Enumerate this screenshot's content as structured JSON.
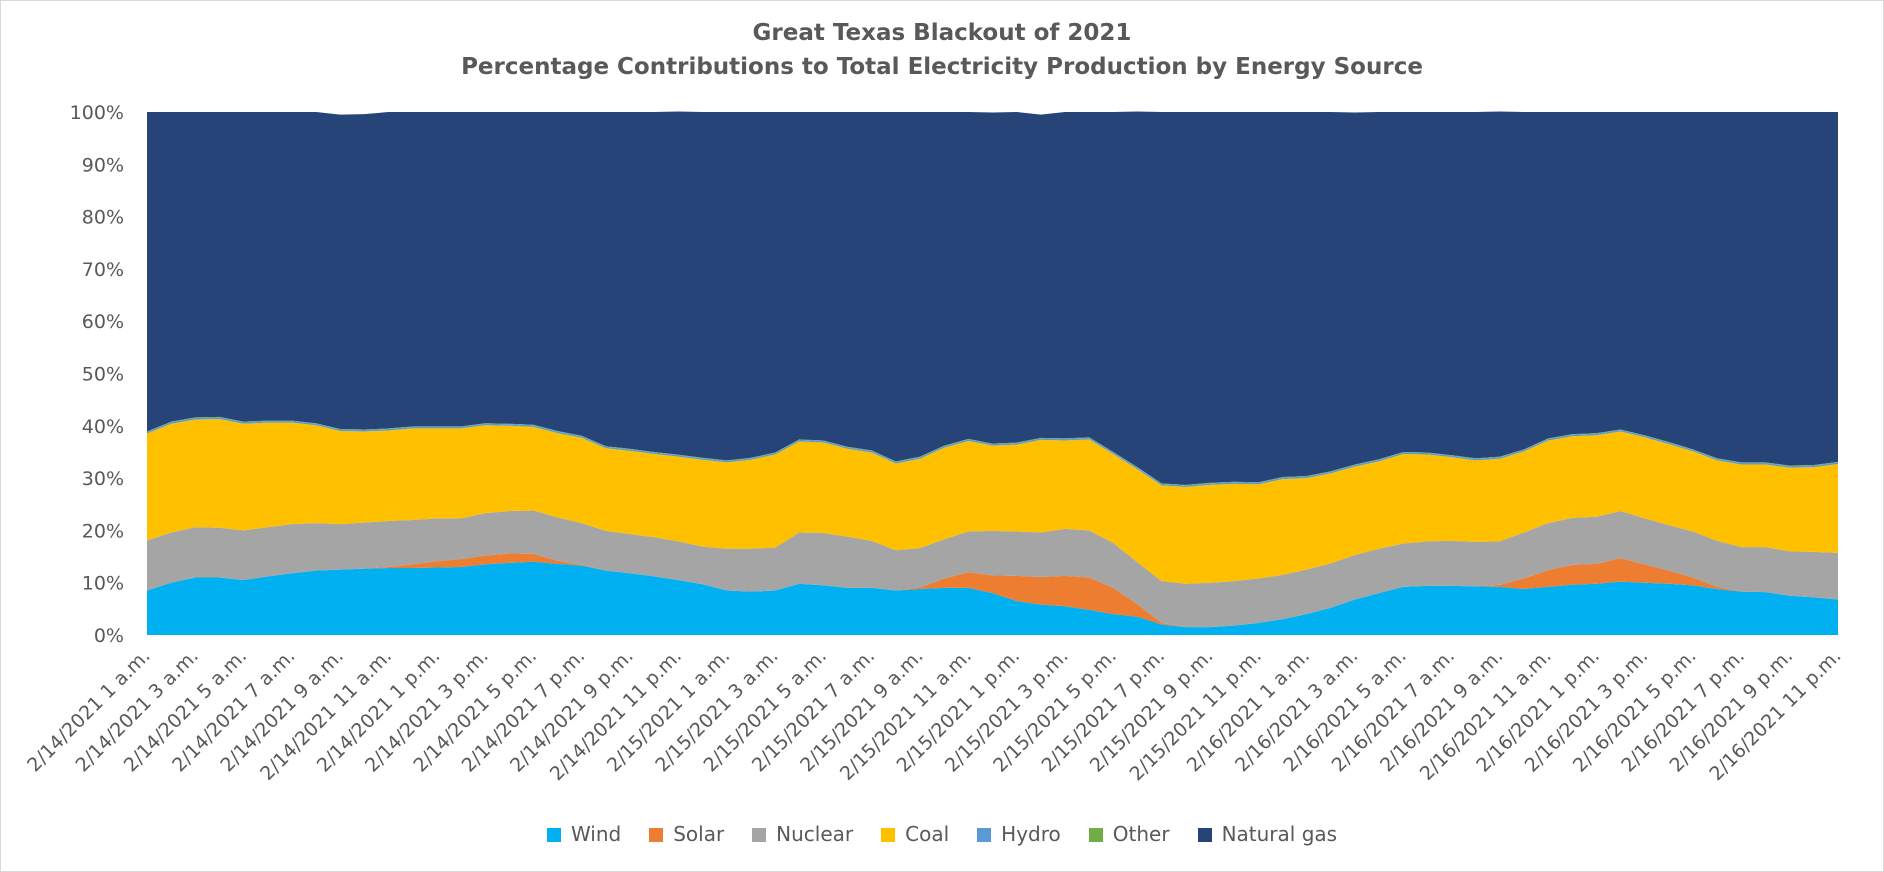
{
  "chart_data": {
    "type": "area",
    "stacked": true,
    "normalized": true,
    "title": "Great Texas Blackout of 2021",
    "subtitle": "Percentage Contributions to Total Electricity Production by Energy Source",
    "ylim": [
      0,
      100
    ],
    "y_ticks": [
      "0%",
      "10%",
      "20%",
      "30%",
      "40%",
      "50%",
      "60%",
      "70%",
      "80%",
      "90%",
      "100%"
    ],
    "x": [
      "2/14/2021 1 a.m.",
      "2/14/2021 2 a.m.",
      "2/14/2021 3 a.m.",
      "2/14/2021 4 a.m.",
      "2/14/2021 5 a.m.",
      "2/14/2021 6 a.m.",
      "2/14/2021 7 a.m.",
      "2/14/2021 8 a.m.",
      "2/14/2021 9 a.m.",
      "2/14/2021 10 a.m.",
      "2/14/2021 11 a.m.",
      "2/14/2021 12 p.m.",
      "2/14/2021 1 p.m.",
      "2/14/2021 2 p.m.",
      "2/14/2021 3 p.m.",
      "2/14/2021 4 p.m.",
      "2/14/2021 5 p.m.",
      "2/14/2021 6 p.m.",
      "2/14/2021 7 p.m.",
      "2/14/2021 8 p.m.",
      "2/14/2021 9 p.m.",
      "2/14/2021 10 p.m.",
      "2/14/2021 11 p.m.",
      "2/15/2021 12 a.m.",
      "2/15/2021 1 a.m.",
      "2/15/2021 2 a.m.",
      "2/15/2021 3 a.m.",
      "2/15/2021 4 a.m.",
      "2/15/2021 5 a.m.",
      "2/15/2021 6 a.m.",
      "2/15/2021 7 a.m.",
      "2/15/2021 8 a.m.",
      "2/15/2021 9 a.m.",
      "2/15/2021 10 a.m.",
      "2/15/2021 11 a.m.",
      "2/15/2021 12 p.m.",
      "2/15/2021 1 p.m.",
      "2/15/2021 2 p.m.",
      "2/15/2021 3 p.m.",
      "2/15/2021 4 p.m.",
      "2/15/2021 5 p.m.",
      "2/15/2021 6 p.m.",
      "2/15/2021 7 p.m.",
      "2/15/2021 8 p.m.",
      "2/15/2021 9 p.m.",
      "2/15/2021 10 p.m.",
      "2/15/2021 11 p.m.",
      "2/16/2021 12 a.m.",
      "2/16/2021 1 a.m.",
      "2/16/2021 2 a.m.",
      "2/16/2021 3 a.m.",
      "2/16/2021 4 a.m.",
      "2/16/2021 5 a.m.",
      "2/16/2021 6 a.m.",
      "2/16/2021 7 a.m.",
      "2/16/2021 8 a.m.",
      "2/16/2021 9 a.m.",
      "2/16/2021 10 a.m.",
      "2/16/2021 11 a.m.",
      "2/16/2021 12 p.m.",
      "2/16/2021 1 p.m.",
      "2/16/2021 2 p.m.",
      "2/16/2021 3 p.m.",
      "2/16/2021 4 p.m.",
      "2/16/2021 5 p.m.",
      "2/16/2021 6 p.m.",
      "2/16/2021 7 p.m.",
      "2/16/2021 8 p.m.",
      "2/16/2021 9 p.m.",
      "2/16/2021 10 p.m.",
      "2/16/2021 11 p.m."
    ],
    "x_tick_labels": [
      "2/14/2021 1 a.m.",
      "2/14/2021 3 a.m.",
      "2/14/2021 5 a.m.",
      "2/14/2021 7 a.m.",
      "2/14/2021 9 a.m.",
      "2/14/2021 11 a.m.",
      "2/14/2021 1 p.m.",
      "2/14/2021 3 p.m.",
      "2/14/2021 5 p.m.",
      "2/14/2021 7 p.m.",
      "2/14/2021 9 p.m.",
      "2/14/2021 11 p.m.",
      "2/15/2021 1 a.m.",
      "2/15/2021 3 a.m.",
      "2/15/2021 5 a.m.",
      "2/15/2021 7 a.m.",
      "2/15/2021 9 a.m.",
      "2/15/2021 11 a.m.",
      "2/15/2021 1 p.m.",
      "2/15/2021 3 p.m.",
      "2/15/2021 5 p.m.",
      "2/15/2021 7 p.m.",
      "2/15/2021 9 p.m.",
      "2/15/2021 11 p.m.",
      "2/16/2021 1 a.m.",
      "2/16/2021 3 a.m.",
      "2/16/2021 5 a.m.",
      "2/16/2021 7 a.m.",
      "2/16/2021 9 a.m.",
      "2/16/2021 11 a.m.",
      "2/16/2021 1 p.m.",
      "2/16/2021 3 p.m.",
      "2/16/2021 5 p.m.",
      "2/16/2021 7 p.m.",
      "2/16/2021 9 p.m.",
      "2/16/2021 11 p.m."
    ],
    "legend_position": "bottom",
    "grid": false,
    "series": [
      {
        "name": "Wind",
        "color": "#00B0F0",
        "values": [
          8.5,
          10,
          11,
          11,
          10.5,
          11.2,
          11.8,
          12.3,
          12.5,
          12.7,
          12.8,
          12.8,
          12.9,
          13,
          13.5,
          13.8,
          14,
          13.6,
          13.3,
          12.3,
          11.8,
          11.2,
          10.5,
          9.7,
          8.5,
          8.3,
          8.5,
          9.8,
          9.5,
          9,
          9,
          8.5,
          8.8,
          9,
          9,
          8,
          6.5,
          5.8,
          5.5,
          4.8,
          4,
          3.5,
          2,
          1.5,
          1.5,
          1.8,
          2.3,
          3,
          4,
          5.2,
          6.8,
          8,
          9.2,
          9.4,
          9.4,
          9.3,
          9.2,
          8.8,
          9.2,
          9.6,
          9.8,
          10.2,
          10,
          9.8,
          9.5,
          8.8,
          8.3,
          8.2,
          7.5,
          7.2,
          6.8
        ]
      },
      {
        "name": "Solar",
        "color": "#ED7D31",
        "values": [
          0,
          0,
          0,
          0,
          0,
          0,
          0,
          0,
          0,
          0,
          0.2,
          0.7,
          1.2,
          1.5,
          1.7,
          1.8,
          1.5,
          0.6,
          0.1,
          0,
          0,
          0,
          0,
          0,
          0,
          0,
          0,
          0,
          0,
          0,
          0,
          0,
          0.3,
          1.8,
          3,
          3.4,
          4.8,
          5.3,
          5.8,
          6.2,
          5,
          2.4,
          0.3,
          0,
          0,
          0,
          0,
          0,
          0,
          0,
          0,
          0,
          0,
          0,
          0,
          0,
          0.4,
          2,
          3.2,
          3.8,
          3.8,
          4.5,
          3.5,
          2.5,
          1.5,
          0.4,
          0,
          0,
          0,
          0,
          0
        ]
      },
      {
        "name": "Nuclear",
        "color": "#A5A5A5",
        "values": [
          9.6,
          9.6,
          9.6,
          9.5,
          9.5,
          9.4,
          9.4,
          9.1,
          8.7,
          8.8,
          8.8,
          8.5,
          8.2,
          7.8,
          8.1,
          8.1,
          8.3,
          8.3,
          8,
          7.6,
          7.5,
          7.5,
          7.4,
          7.2,
          8,
          8.2,
          8.2,
          9.8,
          10,
          9.8,
          9,
          7.7,
          7.5,
          7.5,
          7.8,
          8.5,
          8.5,
          8.5,
          9,
          9,
          8.6,
          8,
          8,
          8.3,
          8.5,
          8.5,
          8.5,
          8.5,
          8.5,
          8.5,
          8.5,
          8.5,
          8.3,
          8.5,
          8.6,
          8.5,
          8.3,
          8.8,
          9,
          9,
          9,
          9,
          8.8,
          8.7,
          8.8,
          8.8,
          8.5,
          8.6,
          8.5,
          8.7,
          8.9
        ]
      },
      {
        "name": "Coal",
        "color": "#FFC000",
        "values": [
          20.4,
          20.8,
          20.6,
          20.8,
          20.4,
          20,
          19.4,
          18.7,
          17.8,
          17.4,
          17.3,
          17.5,
          17.2,
          17.2,
          16.8,
          16.3,
          16,
          16.1,
          16.3,
          15.8,
          15.9,
          15.9,
          16.2,
          16.6,
          16.5,
          17,
          17.8,
          17.4,
          17.3,
          16.8,
          16.9,
          16.6,
          17.1,
          17.5,
          17.3,
          16.3,
          16.6,
          17.7,
          16.9,
          17.4,
          17,
          17.8,
          18.3,
          18.5,
          18.7,
          18.6,
          18,
          18.3,
          17.5,
          17.2,
          16.9,
          16.7,
          17.1,
          16.6,
          16,
          15.6,
          15.8,
          15.5,
          15.8,
          15.6,
          15.6,
          15.2,
          15.5,
          15.5,
          15.3,
          15.4,
          15.8,
          15.8,
          16,
          16.2,
          17
        ]
      },
      {
        "name": "Hydro",
        "color": "#5B9BD5",
        "values": [
          0.3,
          0.3,
          0.3,
          0.3,
          0.3,
          0.3,
          0.3,
          0.3,
          0.3,
          0.3,
          0.3,
          0.3,
          0.3,
          0.3,
          0.3,
          0.3,
          0.3,
          0.3,
          0.3,
          0.3,
          0.3,
          0.3,
          0.3,
          0.3,
          0.3,
          0.3,
          0.3,
          0.3,
          0.3,
          0.3,
          0.3,
          0.3,
          0.3,
          0.3,
          0.3,
          0.3,
          0.3,
          0.3,
          0.3,
          0.3,
          0.3,
          0.3,
          0.3,
          0.3,
          0.3,
          0.3,
          0.3,
          0.3,
          0.3,
          0.3,
          0.3,
          0.3,
          0.3,
          0.3,
          0.3,
          0.3,
          0.3,
          0.3,
          0.3,
          0.3,
          0.3,
          0.3,
          0.3,
          0.3,
          0.3,
          0.3,
          0.3,
          0.3,
          0.3,
          0.3,
          0.3
        ]
      },
      {
        "name": "Other",
        "color": "#70AD47",
        "values": [
          0.1,
          0.1,
          0.1,
          0.1,
          0.1,
          0.1,
          0.1,
          0.1,
          0.1,
          0.1,
          0.1,
          0.1,
          0.1,
          0.1,
          0.1,
          0.1,
          0.1,
          0.1,
          0.1,
          0.1,
          0.1,
          0.1,
          0.1,
          0.1,
          0.1,
          0.1,
          0.1,
          0.1,
          0.1,
          0.1,
          0.1,
          0.1,
          0.1,
          0.1,
          0.1,
          0.1,
          0.1,
          0.1,
          0.1,
          0.1,
          0.1,
          0.1,
          0.1,
          0.1,
          0.1,
          0.1,
          0.1,
          0.1,
          0.1,
          0.1,
          0.1,
          0.1,
          0.1,
          0.1,
          0.1,
          0.1,
          0.1,
          0.1,
          0.1,
          0.1,
          0.1,
          0.1,
          0.1,
          0.1,
          0.1,
          0.1,
          0.1,
          0.1,
          0.1,
          0.1,
          0.1
        ]
      },
      {
        "name": "Natural gas",
        "color": "#264478",
        "values": [
          61.1,
          59.2,
          58.4,
          58.3,
          59.2,
          59,
          59,
          59.5,
          60.1,
          60.3,
          60.5,
          60.1,
          60.1,
          60.1,
          59.5,
          59.6,
          59.8,
          61,
          61.9,
          63.9,
          64.4,
          65,
          65.6,
          66.1,
          66.6,
          66.1,
          65.1,
          62.6,
          62.8,
          64,
          64.7,
          66.8,
          65.9,
          63.8,
          62.5,
          63.3,
          63.2,
          61.8,
          62.4,
          62.2,
          65,
          68,
          71,
          71.3,
          70.9,
          70.7,
          70.8,
          69.8,
          69.6,
          68.7,
          67.3,
          66.4,
          65,
          65.1,
          65.6,
          66.2,
          66,
          64.5,
          62.4,
          61.6,
          61.4,
          60.7,
          61.8,
          63.1,
          64.5,
          66.2,
          67,
          67,
          67.6,
          67.5,
          66.9
        ]
      }
    ]
  }
}
